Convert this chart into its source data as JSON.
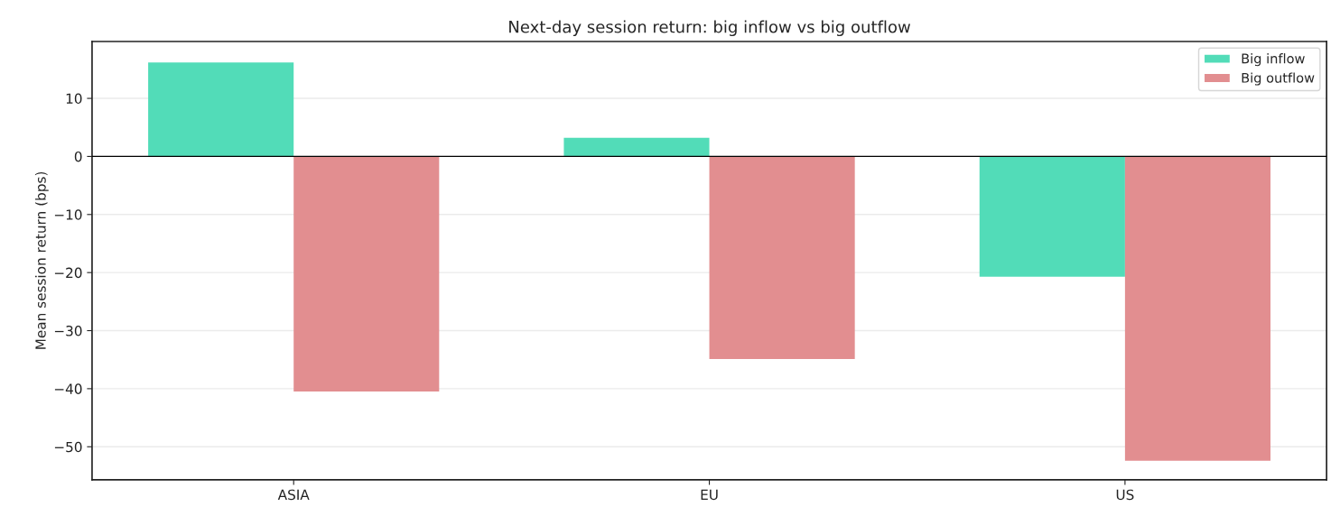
{
  "chart_data": {
    "type": "bar",
    "title": "Next-day session return: big inflow vs big outflow",
    "ylabel": "Mean session return (bps)",
    "categories": [
      "ASIA",
      "EU",
      "US"
    ],
    "series": [
      {
        "name": "Big inflow",
        "color": "#52dcb8",
        "values": [
          16.2,
          3.2,
          -20.7
        ]
      },
      {
        "name": "Big outflow",
        "color": "#e28e90",
        "values": [
          -40.5,
          -34.9,
          -52.4
        ]
      }
    ],
    "ylim": [
      -55.7,
      19.8
    ],
    "yticks": [
      -50,
      -40,
      -30,
      -20,
      -10,
      0,
      10
    ],
    "ref_lines": [
      {
        "axis": "y",
        "value": 0,
        "color": "#000000"
      }
    ],
    "grid": "y",
    "legend": "top right"
  }
}
